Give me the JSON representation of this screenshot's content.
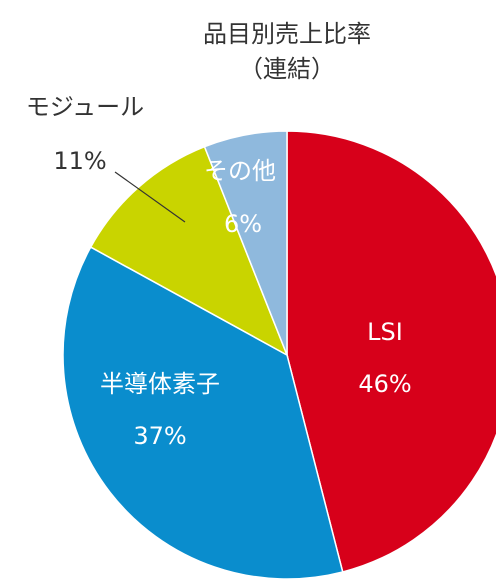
{
  "chart_data": {
    "type": "pie",
    "title": "品目別売上比率",
    "subtitle": "（連結）",
    "categories": [
      "LSI",
      "半導体素子",
      "モジュール",
      "その他"
    ],
    "values": [
      46,
      37,
      11,
      6
    ],
    "value_labels": [
      "46%",
      "37%",
      "11%",
      "6%"
    ],
    "colors": [
      "#d7001a",
      "#0a8dcd",
      "#c9d400",
      "#8fb9dd"
    ]
  }
}
